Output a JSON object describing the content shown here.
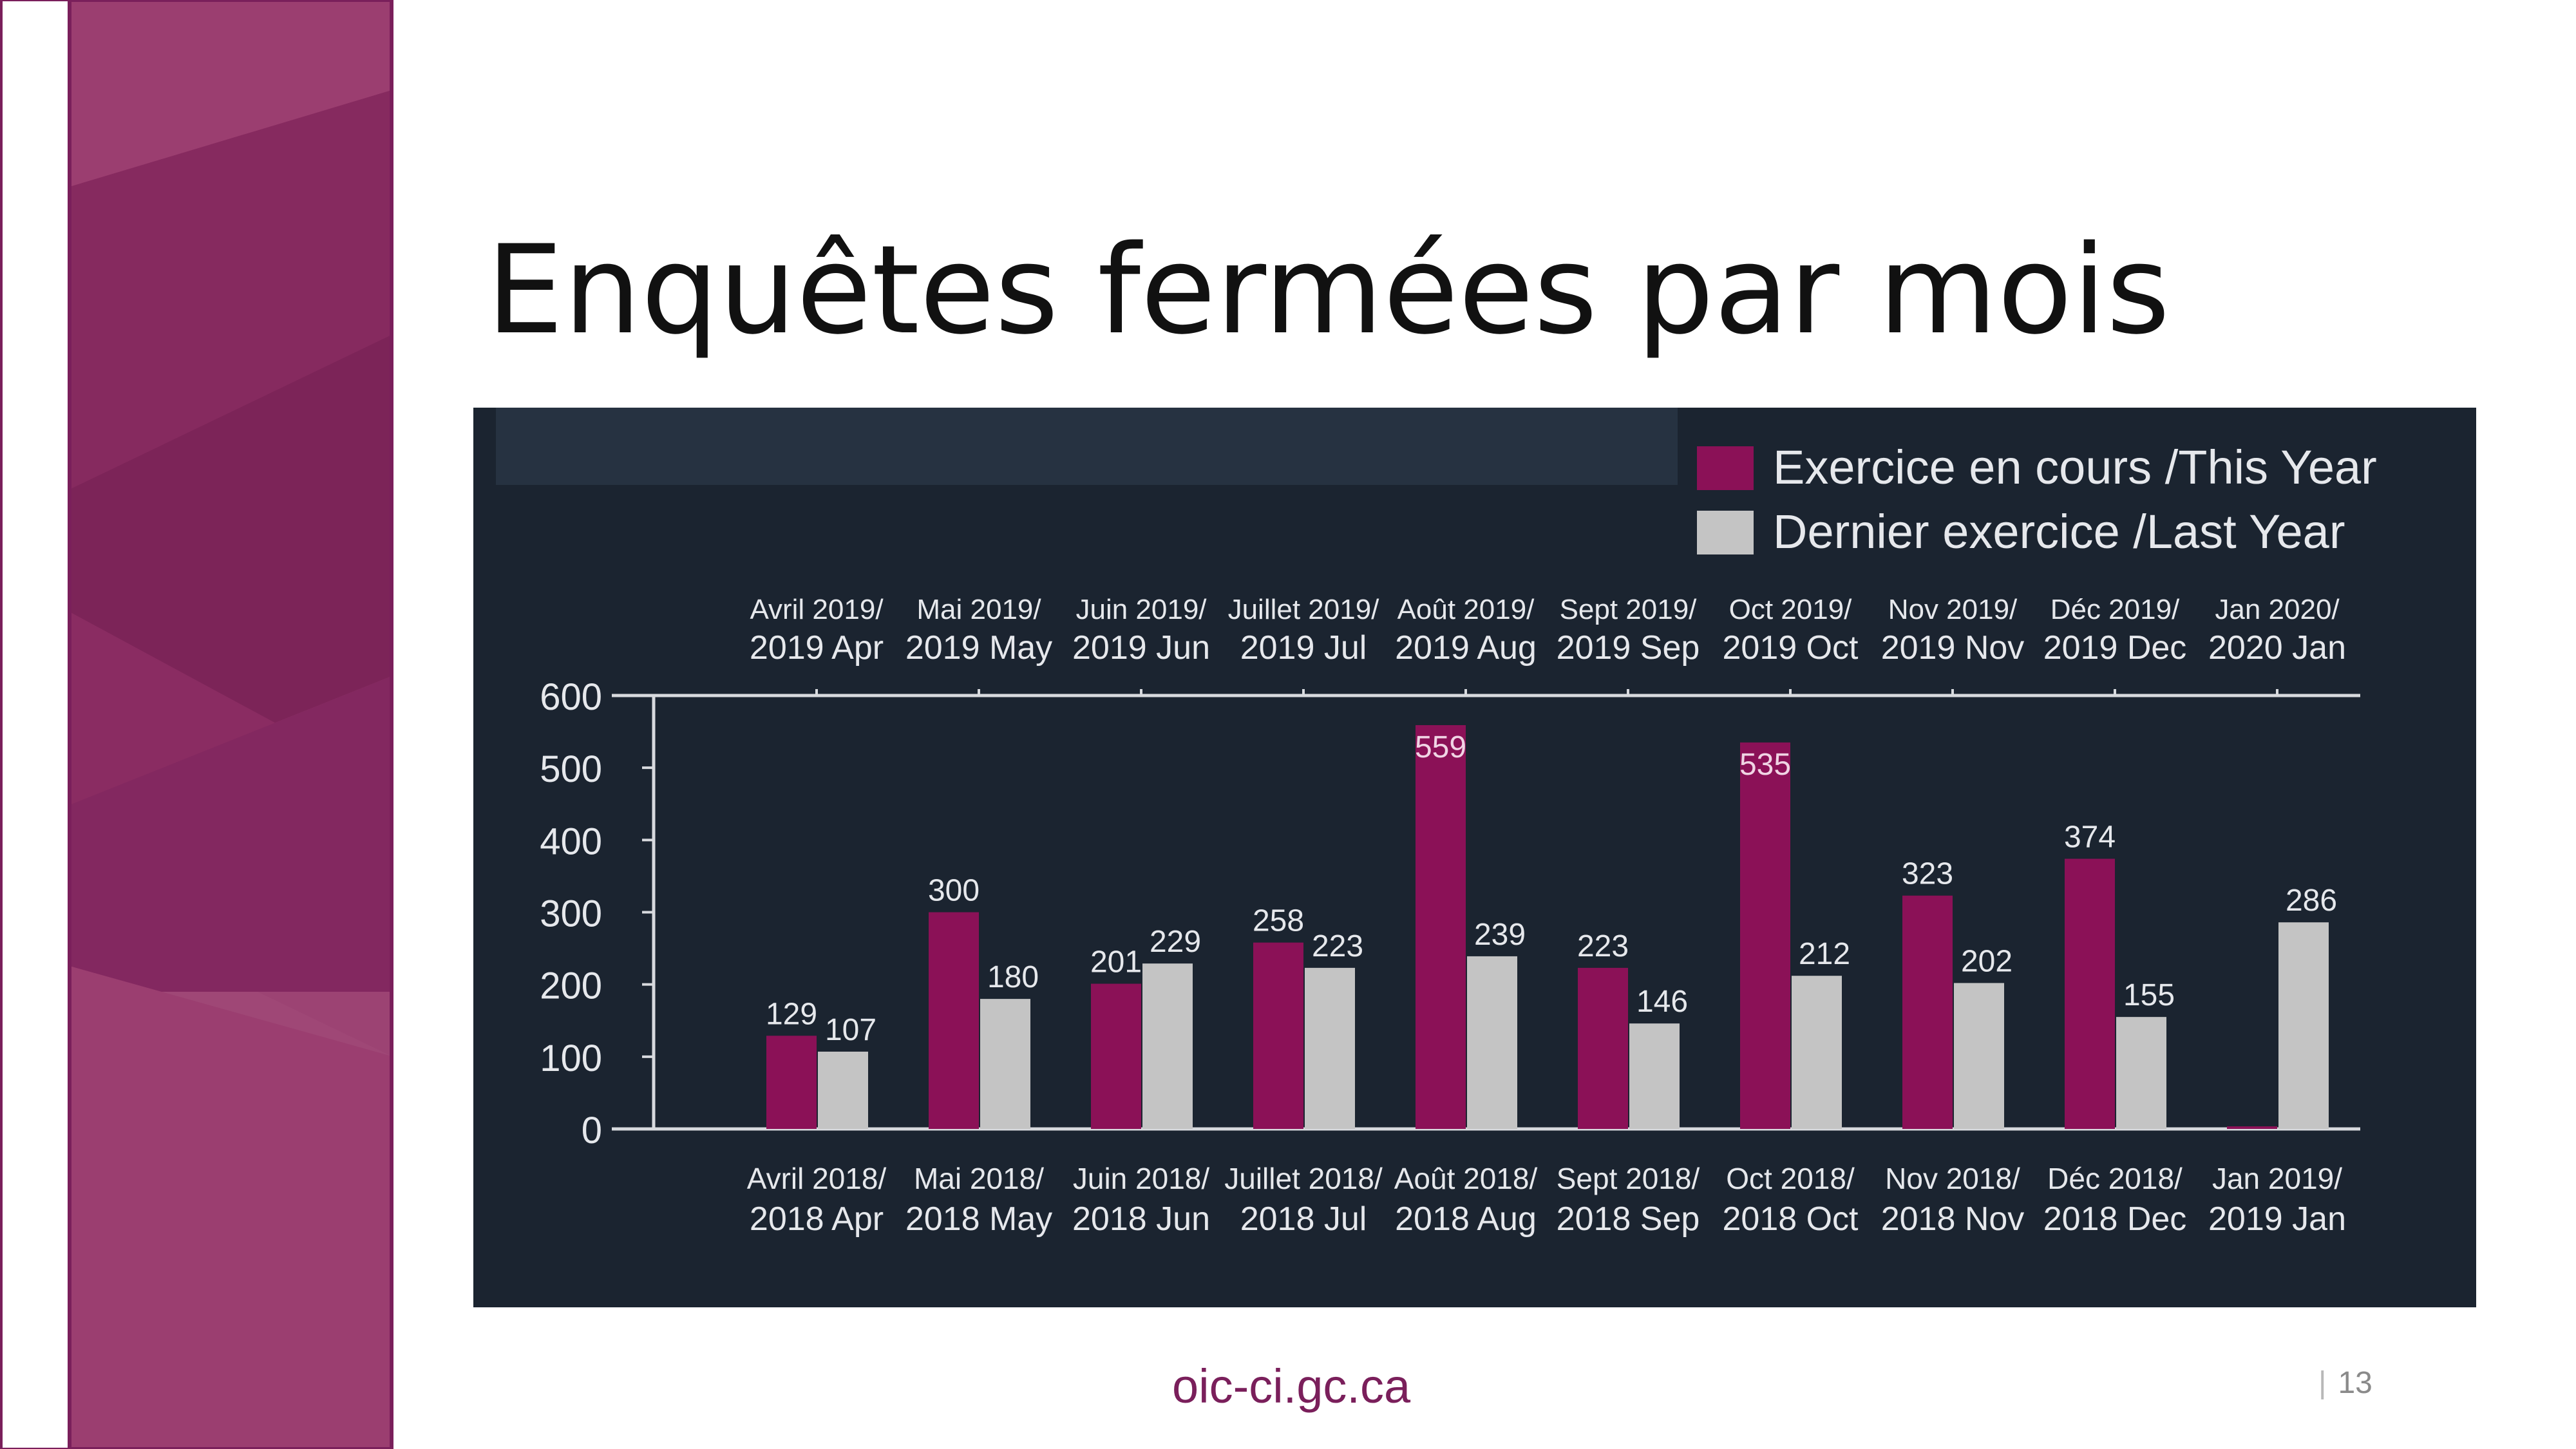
{
  "slide": {
    "title": "Enquêtes fermées par mois",
    "footer_url": "oic-ci.gc.ca",
    "page_number": "13"
  },
  "colors": {
    "this_year": "#8b1157",
    "last_year": "#c4c4c4",
    "chart_background": "#1b2430",
    "sidebar": "#9b3e70",
    "accent_text": "#7a1f5b"
  },
  "chart_data": {
    "type": "bar",
    "title": "",
    "xlabel": "",
    "ylabel": "",
    "ylim": [
      0,
      600
    ],
    "yticks": [
      0,
      100,
      200,
      300,
      400,
      500,
      600
    ],
    "legend_position": "top-right",
    "grid": false,
    "categories_top": [
      [
        "Avril 2019/",
        "2019 Apr"
      ],
      [
        "Mai 2019/",
        "2019 May"
      ],
      [
        "Juin 2019/",
        "2019 Jun"
      ],
      [
        "Juillet 2019/",
        "2019 Jul"
      ],
      [
        "Août 2019/",
        "2019 Aug"
      ],
      [
        "Sept 2019/",
        "2019 Sep"
      ],
      [
        "Oct 2019/",
        "2019 Oct"
      ],
      [
        "Nov 2019/",
        "2019 Nov"
      ],
      [
        "Déc 2019/",
        "2019 Dec"
      ],
      [
        "Jan 2020/",
        "2020 Jan"
      ]
    ],
    "categories_bottom": [
      [
        "Avril 2018/",
        "2018 Apr"
      ],
      [
        "Mai 2018/",
        "2018 May"
      ],
      [
        "Juin 2018/",
        "2018 Jun"
      ],
      [
        "Juillet 2018/",
        "2018 Jul"
      ],
      [
        "Août 2018/",
        "2018 Aug"
      ],
      [
        "Sept 2018/",
        "2018 Sep"
      ],
      [
        "Oct 2018/",
        "2018 Oct"
      ],
      [
        "Nov 2018/",
        "2018 Nov"
      ],
      [
        "Déc 2018/",
        "2018 Dec"
      ],
      [
        "Jan 2019/",
        "2019 Jan"
      ]
    ],
    "series": [
      {
        "name": "Exercice en cours /This Year",
        "color": "#8b1157",
        "values": [
          129,
          300,
          201,
          258,
          559,
          223,
          535,
          323,
          374,
          null
        ]
      },
      {
        "name": "Dernier exercice /Last Year",
        "color": "#c4c4c4",
        "values": [
          107,
          180,
          229,
          223,
          239,
          146,
          212,
          202,
          155,
          286
        ]
      }
    ]
  }
}
